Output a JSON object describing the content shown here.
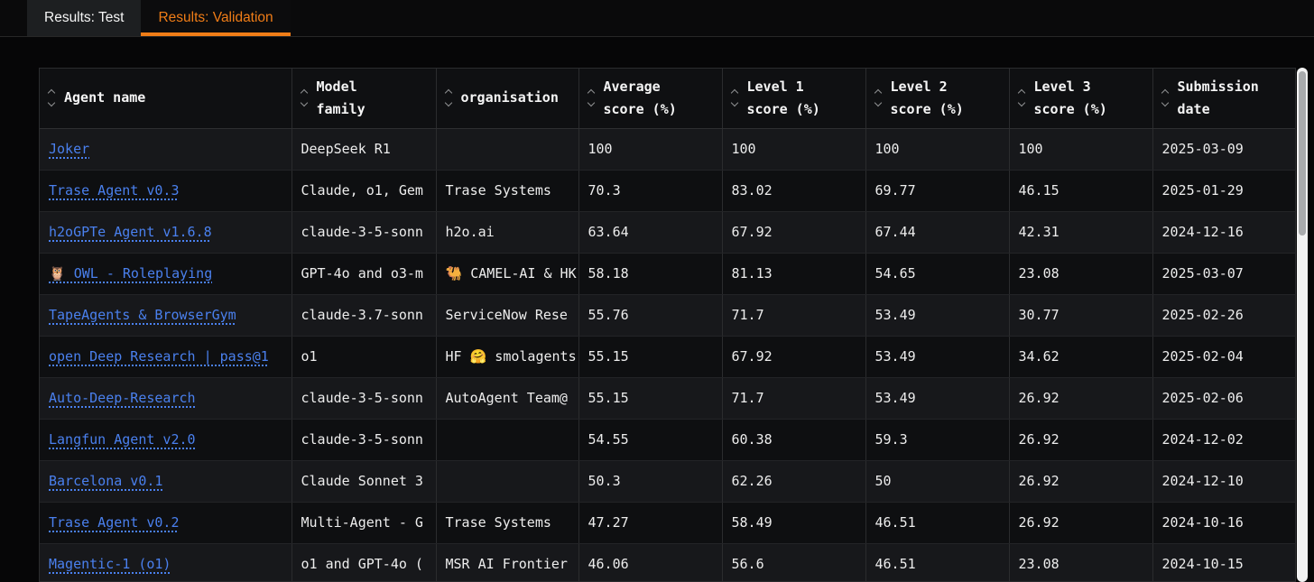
{
  "tabs": [
    {
      "label": "Results: Test",
      "active": false
    },
    {
      "label": "Results: Validation",
      "active": true
    }
  ],
  "colors": {
    "accent_orange": "#f07d17",
    "link_blue": "#4a80ee",
    "row_light": "#17181b",
    "row_dark": "#0e0f11"
  },
  "table": {
    "columns": [
      {
        "key": "agent",
        "label": "Agent name",
        "sortable": true
      },
      {
        "key": "model",
        "label": "Model\nfamily",
        "sortable": true
      },
      {
        "key": "org",
        "label": "organisation",
        "sortable": true
      },
      {
        "key": "avg",
        "label": "Average\nscore (%)",
        "sortable": true
      },
      {
        "key": "l1",
        "label": "Level 1\nscore (%)",
        "sortable": true
      },
      {
        "key": "l2",
        "label": "Level 2\nscore (%)",
        "sortable": true
      },
      {
        "key": "l3",
        "label": "Level 3\nscore (%)",
        "sortable": true
      },
      {
        "key": "date",
        "label": "Submission\ndate",
        "sortable": true
      }
    ],
    "rows": [
      {
        "agent": "Joker",
        "model": "DeepSeek R1",
        "org": "",
        "avg": "100",
        "l1": "100",
        "l2": "100",
        "l3": "100",
        "date": "2025-03-09"
      },
      {
        "agent": "Trase Agent v0.3",
        "model": "Claude, o1, Gem",
        "org": "Trase Systems",
        "avg": "70.3",
        "l1": "83.02",
        "l2": "69.77",
        "l3": "46.15",
        "date": "2025-01-29"
      },
      {
        "agent": "h2oGPTe Agent v1.6.8",
        "model": "claude-3-5-sonn",
        "org": "h2o.ai",
        "avg": "63.64",
        "l1": "67.92",
        "l2": "67.44",
        "l3": "42.31",
        "date": "2024-12-16"
      },
      {
        "agent": "🦉 OWL - Roleplaying",
        "model": "GPT-4o and o3-m",
        "org": "🐫 CAMEL-AI & HK",
        "avg": "58.18",
        "l1": "81.13",
        "l2": "54.65",
        "l3": "23.08",
        "date": "2025-03-07"
      },
      {
        "agent": "TapeAgents & BrowserGym",
        "model": "claude-3.7-sonn",
        "org": "ServiceNow Rese",
        "avg": "55.76",
        "l1": "71.7",
        "l2": "53.49",
        "l3": "30.77",
        "date": "2025-02-26"
      },
      {
        "agent": "open Deep Research | pass@1",
        "model": "o1",
        "org": "HF 🤗 smolagents",
        "avg": "55.15",
        "l1": "67.92",
        "l2": "53.49",
        "l3": "34.62",
        "date": "2025-02-04"
      },
      {
        "agent": "Auto-Deep-Research",
        "model": "claude-3-5-sonn",
        "org": "AutoAgent Team@",
        "avg": "55.15",
        "l1": "71.7",
        "l2": "53.49",
        "l3": "26.92",
        "date": "2025-02-06"
      },
      {
        "agent": "Langfun Agent v2.0",
        "model": "claude-3-5-sonn",
        "org": "",
        "avg": "54.55",
        "l1": "60.38",
        "l2": "59.3",
        "l3": "26.92",
        "date": "2024-12-02"
      },
      {
        "agent": "Barcelona v0.1",
        "model": "Claude Sonnet 3",
        "org": "",
        "avg": "50.3",
        "l1": "62.26",
        "l2": "50",
        "l3": "26.92",
        "date": "2024-12-10"
      },
      {
        "agent": "Trase Agent v0.2",
        "model": "Multi-Agent - G",
        "org": "Trase Systems",
        "avg": "47.27",
        "l1": "58.49",
        "l2": "46.51",
        "l3": "26.92",
        "date": "2024-10-16"
      },
      {
        "agent": "Magentic-1 (o1)",
        "model": "o1 and GPT-4o (",
        "org": "MSR AI Frontier",
        "avg": "46.06",
        "l1": "56.6",
        "l2": "46.51",
        "l3": "23.08",
        "date": "2024-10-15"
      }
    ]
  }
}
